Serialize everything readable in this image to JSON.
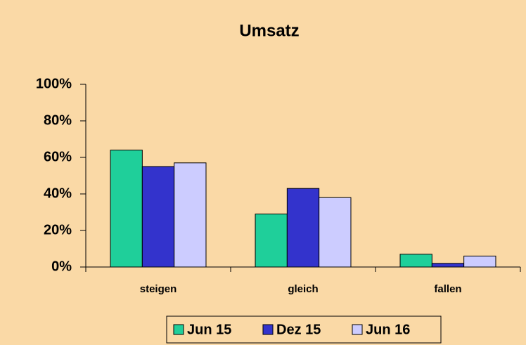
{
  "chart_data": {
    "type": "bar",
    "title": "Umsatz",
    "categories": [
      "steigen",
      "gleich",
      "fallen"
    ],
    "series": [
      {
        "name": "Jun 15",
        "color": "#1fcf9a",
        "values": [
          64,
          29,
          7
        ]
      },
      {
        "name": "Dez 15",
        "color": "#3333cc",
        "values": [
          55,
          43,
          2
        ]
      },
      {
        "name": "Jun 16",
        "color": "#ccccff",
        "values": [
          57,
          38,
          6
        ]
      }
    ],
    "ylim": [
      0,
      100
    ],
    "yticks": [
      {
        "value": 0,
        "label": "0%"
      },
      {
        "value": 20,
        "label": "20%"
      },
      {
        "value": 40,
        "label": "40%"
      },
      {
        "value": 60,
        "label": "60%"
      },
      {
        "value": 80,
        "label": "80%"
      },
      {
        "value": 100,
        "label": "100%"
      }
    ],
    "legend": "bottom"
  }
}
